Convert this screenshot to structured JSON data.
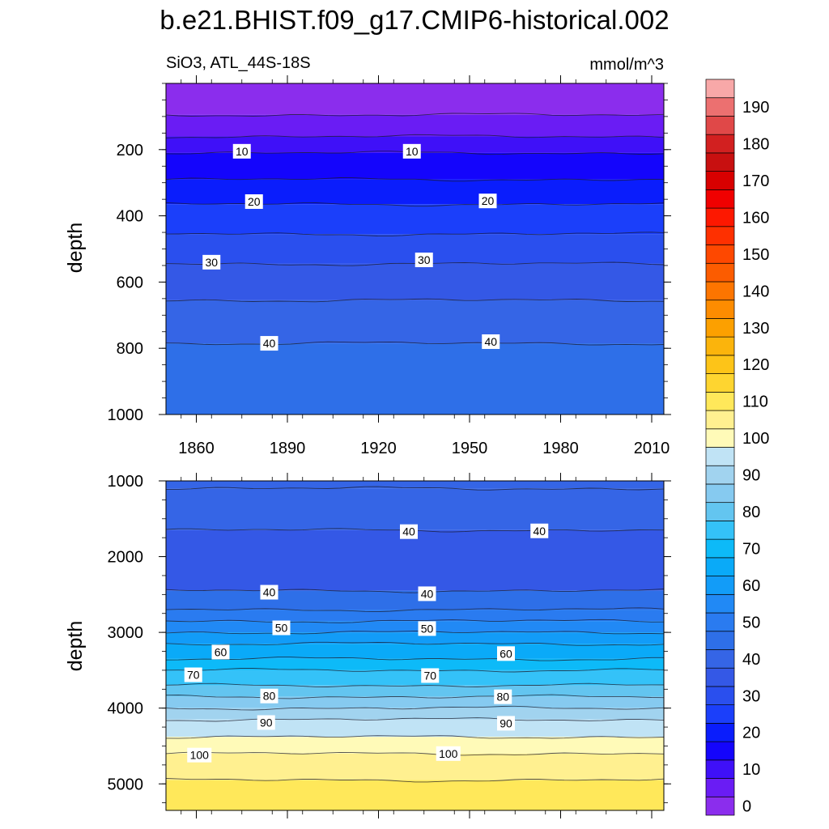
{
  "chart_data": {
    "type": "heatmap",
    "title": "b.e21.BHIST.f09_g17.CMIP6-historical.002",
    "subtitle_left": "SiO3, ATL_44S-18S",
    "units": "mmol/m^3",
    "x_range": [
      1850,
      2014
    ],
    "x_ticks": [
      "1860",
      "1890",
      "1920",
      "1950",
      "1980",
      "2010"
    ],
    "ylabel": "depth",
    "colorbar": {
      "levels": [
        0,
        5,
        10,
        15,
        20,
        25,
        30,
        35,
        40,
        45,
        50,
        55,
        60,
        65,
        70,
        75,
        80,
        85,
        90,
        95,
        100,
        105,
        110,
        115,
        120,
        125,
        130,
        135,
        140,
        145,
        150,
        155,
        160,
        165,
        170,
        175,
        180,
        185,
        190,
        195
      ],
      "tick_labels": [
        "0",
        "10",
        "20",
        "30",
        "40",
        "50",
        "60",
        "70",
        "80",
        "90",
        "100",
        "110",
        "120",
        "130",
        "140",
        "150",
        "160",
        "170",
        "180",
        "190"
      ],
      "colors": [
        "#8b2ded",
        "#6a1cf4",
        "#3f10f8",
        "#1405fc",
        "#0a1dfc",
        "#1b3ffa",
        "#2a4fee",
        "#3458e6",
        "#3565e6",
        "#2e6fe8",
        "#2a7bf0",
        "#2189f5",
        "#129cf8",
        "#0aaaf8",
        "#0dbaf8",
        "#34c2f8",
        "#63c5f0",
        "#86caf0",
        "#a1d3ef",
        "#c0e3f5",
        "#fffab8",
        "#fff090",
        "#ffe85a",
        "#fed530",
        "#fdc418",
        "#fbb40c",
        "#fca000",
        "#fd8c00",
        "#fd7500",
        "#fc5c00",
        "#fe4800",
        "#fe3000",
        "#fd1800",
        "#f00000",
        "#d80000",
        "#c81010",
        "#d22020",
        "#e04848",
        "#ec7070",
        "#f8a8a8"
      ]
    },
    "panels": [
      {
        "name": "upper-ocean",
        "y_range": [
          1000,
          0
        ],
        "y_ticks": [
          "200",
          "400",
          "600",
          "800",
          "1000"
        ],
        "bands": [
          {
            "bottom": 95,
            "value": 0
          },
          {
            "bottom": 160,
            "value": 5
          },
          {
            "bottom": 210,
            "value": 10
          },
          {
            "bottom": 290,
            "value": 15
          },
          {
            "bottom": 365,
            "value": 20
          },
          {
            "bottom": 455,
            "value": 25
          },
          {
            "bottom": 545,
            "value": 30
          },
          {
            "bottom": 655,
            "value": 35
          },
          {
            "bottom": 785,
            "value": 40
          },
          {
            "bottom": 1000,
            "value": 45
          }
        ],
        "contour_labels": [
          {
            "text": "10",
            "x": 1875,
            "y": 205
          },
          {
            "text": "10",
            "x": 1931,
            "y": 205
          },
          {
            "text": "20",
            "x": 1879,
            "y": 357
          },
          {
            "text": "20",
            "x": 1956,
            "y": 355
          },
          {
            "text": "30",
            "x": 1865,
            "y": 540
          },
          {
            "text": "30",
            "x": 1935,
            "y": 533
          },
          {
            "text": "40",
            "x": 1884,
            "y": 785
          },
          {
            "text": "40",
            "x": 1957,
            "y": 780
          }
        ]
      },
      {
        "name": "deep-ocean",
        "y_range": [
          5350,
          1000
        ],
        "y_ticks": [
          "1000",
          "2000",
          "3000",
          "4000",
          "5000"
        ],
        "bands": [
          {
            "bottom": 1100,
            "value": 40
          },
          {
            "bottom": 1650,
            "value": 40
          },
          {
            "bottom": 2450,
            "value": 35
          },
          {
            "bottom": 2700,
            "value": 45
          },
          {
            "bottom": 2850,
            "value": 50
          },
          {
            "bottom": 3000,
            "value": 55
          },
          {
            "bottom": 3150,
            "value": 60
          },
          {
            "bottom": 3350,
            "value": 65
          },
          {
            "bottom": 3500,
            "value": 70
          },
          {
            "bottom": 3700,
            "value": 75
          },
          {
            "bottom": 3850,
            "value": 80
          },
          {
            "bottom": 4000,
            "value": 85
          },
          {
            "bottom": 4150,
            "value": 90
          },
          {
            "bottom": 4380,
            "value": 95
          },
          {
            "bottom": 4600,
            "value": 100
          },
          {
            "bottom": 4950,
            "value": 105
          },
          {
            "bottom": 5350,
            "value": 110
          }
        ],
        "contour_labels": [
          {
            "text": "40",
            "x": 1930,
            "y": 1670
          },
          {
            "text": "40",
            "x": 1973,
            "y": 1660
          },
          {
            "text": "40",
            "x": 1884,
            "y": 2470
          },
          {
            "text": "40",
            "x": 1936,
            "y": 2490
          },
          {
            "text": "50",
            "x": 1888,
            "y": 2940
          },
          {
            "text": "50",
            "x": 1936,
            "y": 2950
          },
          {
            "text": "60",
            "x": 1868,
            "y": 3260
          },
          {
            "text": "60",
            "x": 1962,
            "y": 3280
          },
          {
            "text": "70",
            "x": 1859,
            "y": 3560
          },
          {
            "text": "70",
            "x": 1937,
            "y": 3570
          },
          {
            "text": "80",
            "x": 1884,
            "y": 3840
          },
          {
            "text": "80",
            "x": 1961,
            "y": 3850
          },
          {
            "text": "90",
            "x": 1883,
            "y": 4190
          },
          {
            "text": "90",
            "x": 1962,
            "y": 4200
          },
          {
            "text": "100",
            "x": 1861,
            "y": 4620
          },
          {
            "text": "100",
            "x": 1943,
            "y": 4600
          }
        ]
      }
    ]
  }
}
